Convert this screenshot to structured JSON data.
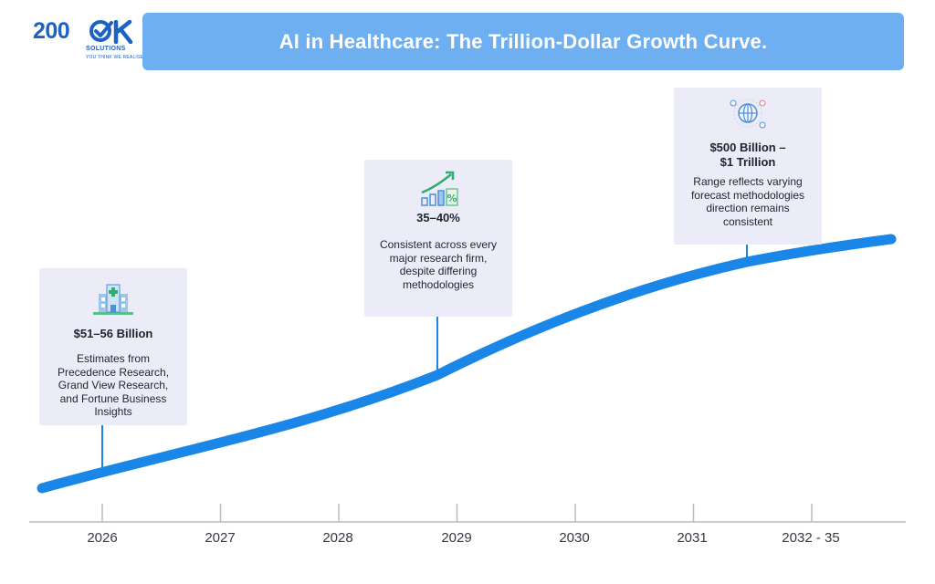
{
  "header": {
    "title": "AI in Healthcare: The Trillion-Dollar Growth Curve."
  },
  "logo": {
    "main": "200",
    "sub": "SOLUTIONS",
    "tagline": "YOU THINK WE REALISE"
  },
  "milestones": [
    {
      "icon": "hospital-icon",
      "value": "$51–56 Billion",
      "description": "Estimates from Precedence Research, Grand View Research, and Fortune Business Insights"
    },
    {
      "icon": "growth-chart-icon",
      "value": "35–40%",
      "description": "Consistent across every major research firm, despite differing methodologies"
    },
    {
      "icon": "global-health-icon",
      "value": "$500 Billion – $1 Trillion",
      "description": "Range reflects varying forecast methodologies direction remains consistent"
    }
  ],
  "timeline": {
    "ticks": [
      "2026",
      "2027",
      "2028",
      "2029",
      "2030",
      "2031",
      "2032 - 35"
    ]
  },
  "colors": {
    "curve": "#1a87e8",
    "banner": "#6eaff2",
    "card": "#ececf8",
    "connector": "#1a87e8"
  }
}
